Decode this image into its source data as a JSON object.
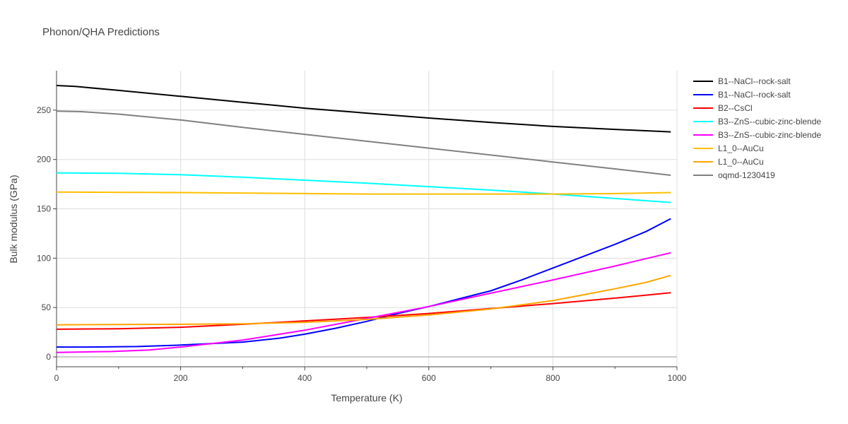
{
  "chart_data": {
    "type": "line",
    "title": "Phonon/QHA Predictions",
    "xlabel": "Temperature (K)",
    "ylabel": "Bulk modulus (GPa)",
    "xlim": [
      0,
      1000
    ],
    "ylim": [
      -10,
      290
    ],
    "xticks": [
      0,
      200,
      400,
      600,
      800,
      1000
    ],
    "yticks": [
      0,
      50,
      100,
      150,
      200,
      250
    ],
    "grid": true,
    "legend_position": "right",
    "series": [
      {
        "name": "B1--NaCl--rock-salt",
        "color": "#000000",
        "x": [
          0,
          30,
          100,
          200,
          300,
          400,
          500,
          600,
          700,
          800,
          900,
          990
        ],
        "y": [
          275,
          274,
          270,
          264,
          258,
          252,
          247,
          242,
          237.5,
          233.5,
          230.5,
          228
        ]
      },
      {
        "name": "B1--NaCl--rock-salt",
        "color": "#0000ff",
        "x": [
          0,
          50,
          130,
          200,
          300,
          360,
          400,
          450,
          500,
          550,
          600,
          650,
          700,
          750,
          800,
          850,
          900,
          950,
          990
        ],
        "y": [
          10,
          10,
          10.5,
          12,
          15,
          19,
          23,
          29,
          36,
          44,
          51,
          59,
          67,
          78,
          90,
          102,
          114,
          127,
          140
        ]
      },
      {
        "name": "B2--CsCl",
        "color": "#ff0000",
        "x": [
          0,
          100,
          200,
          300,
          400,
          500,
          600,
          700,
          800,
          900,
          990
        ],
        "y": [
          28,
          28.5,
          30,
          33,
          36.5,
          40,
          44,
          49,
          54,
          59.5,
          65
        ]
      },
      {
        "name": "B3--ZnS--cubic-zinc-blende",
        "color": "#00ffff",
        "x": [
          0,
          100,
          200,
          300,
          400,
          500,
          600,
          700,
          800,
          900,
          990
        ],
        "y": [
          186.5,
          186,
          184.5,
          182,
          179,
          176,
          172.5,
          169,
          165,
          160.5,
          156.5
        ]
      },
      {
        "name": "B3--ZnS--cubic-zinc-blende",
        "color": "#ff00ff",
        "x": [
          0,
          90,
          150,
          200,
          300,
          400,
          500,
          600,
          700,
          800,
          900,
          990
        ],
        "y": [
          4.5,
          5.5,
          7,
          10,
          17,
          27,
          39,
          51,
          64.5,
          78,
          92,
          105.5
        ]
      },
      {
        "name": "L1_0--AuCu",
        "color": "#ffbf00",
        "x": [
          0,
          200,
          400,
          500,
          600,
          700,
          800,
          900,
          990
        ],
        "y": [
          167,
          166.5,
          165.5,
          165,
          165,
          165,
          165,
          165.5,
          166.5
        ]
      },
      {
        "name": "L1_0--AuCu",
        "color": "#ffa500",
        "x": [
          0,
          200,
          300,
          400,
          500,
          600,
          700,
          800,
          850,
          900,
          950,
          990
        ],
        "y": [
          32.5,
          33,
          33.5,
          35,
          38,
          42.5,
          48.5,
          57,
          63,
          69,
          75.5,
          82.5
        ]
      },
      {
        "name": "oqmd-1230419",
        "color": "#808080",
        "x": [
          0,
          40,
          100,
          200,
          300,
          400,
          500,
          600,
          700,
          800,
          900,
          990
        ],
        "y": [
          249,
          248.5,
          246,
          240,
          232.5,
          225.5,
          218.5,
          211.5,
          204.5,
          197.5,
          190.5,
          184
        ]
      }
    ]
  }
}
